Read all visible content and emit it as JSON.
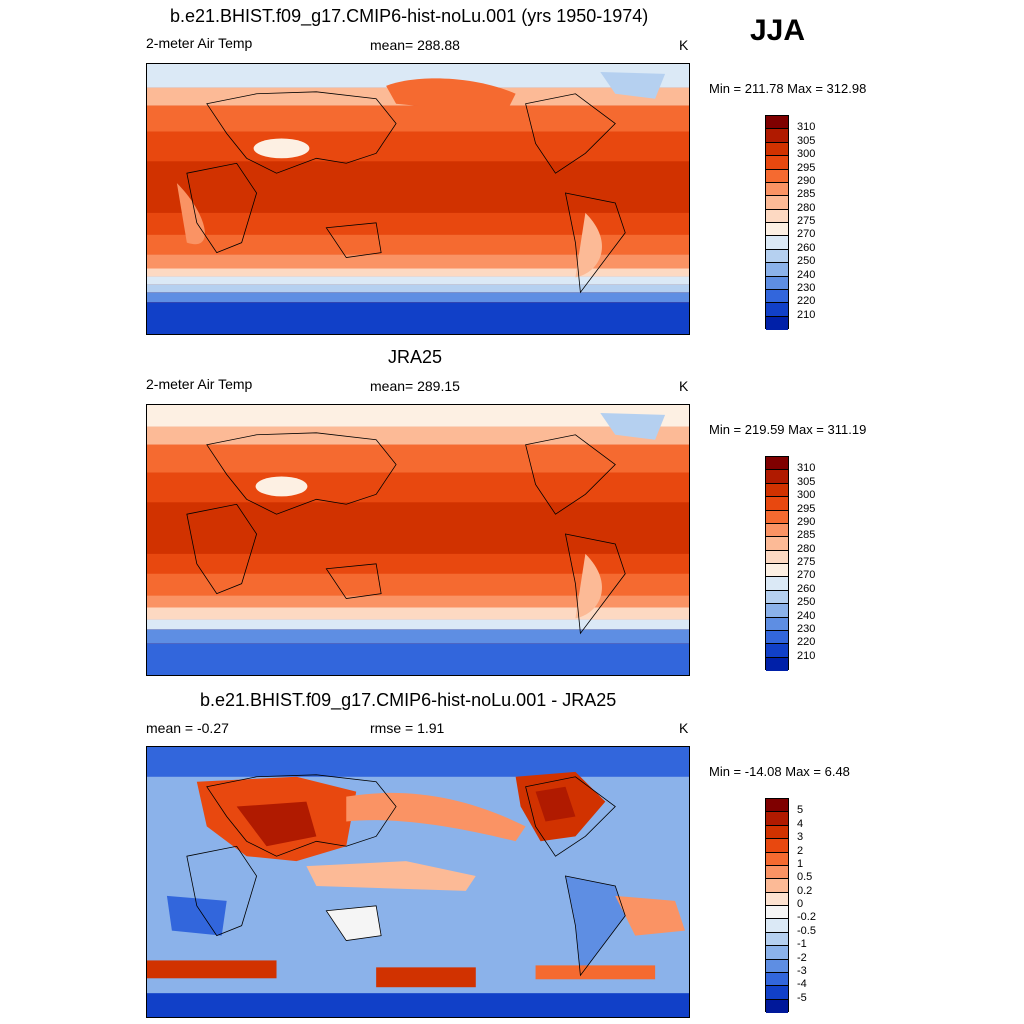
{
  "season": "JJA",
  "panels": [
    {
      "title": "b.e21.BHIST.f09_g17.CMIP6-hist-noLu.001 (yrs 1950-1974)",
      "left_label": "2-meter Air Temp",
      "center_label": "mean= 288.88",
      "units": "K",
      "minmax": "Min = 211.78 Max = 312.98",
      "colorbar": {
        "ticks": [
          "310",
          "305",
          "300",
          "295",
          "290",
          "285",
          "280",
          "275",
          "270",
          "260",
          "250",
          "240",
          "230",
          "220",
          "210"
        ],
        "colors": [
          "#7f0000",
          "#b01a00",
          "#d13200",
          "#e8480f",
          "#f56a30",
          "#fa9364",
          "#fcba96",
          "#fdd9c2",
          "#fdf0e3",
          "#dbe9f6",
          "#b5d0f0",
          "#8bb2ea",
          "#5e8ee3",
          "#3266dc",
          "#1140c8",
          "#0020a8"
        ]
      }
    },
    {
      "title": "JRA25",
      "left_label": "2-meter Air Temp",
      "center_label": "mean= 289.15",
      "units": "K",
      "minmax": "Min = 219.59 Max = 311.19",
      "colorbar": {
        "ticks": [
          "310",
          "305",
          "300",
          "295",
          "290",
          "285",
          "280",
          "275",
          "270",
          "260",
          "250",
          "240",
          "230",
          "220",
          "210"
        ],
        "colors": [
          "#7f0000",
          "#b01a00",
          "#d13200",
          "#e8480f",
          "#f56a30",
          "#fa9364",
          "#fcba96",
          "#fdd9c2",
          "#fdf0e3",
          "#dbe9f6",
          "#b5d0f0",
          "#8bb2ea",
          "#5e8ee3",
          "#3266dc",
          "#1140c8",
          "#0020a8"
        ]
      }
    },
    {
      "title": "b.e21.BHIST.f09_g17.CMIP6-hist-noLu.001 - JRA25",
      "left_label": "mean =  -0.27",
      "center_label": "rmse =   1.91",
      "units": "K",
      "minmax": "Min = -14.08 Max =   6.48",
      "colorbar": {
        "ticks": [
          "5",
          "4",
          "3",
          "2",
          "1",
          "0.5",
          "0.2",
          "0",
          "-0.2",
          "-0.5",
          "-1",
          "-2",
          "-3",
          "-4",
          "-5"
        ],
        "colors": [
          "#7f0000",
          "#b01a00",
          "#d13200",
          "#e8480f",
          "#f56a30",
          "#fa9364",
          "#fcba96",
          "#fde2d0",
          "#f5f5f5",
          "#dbe9f6",
          "#b5d0f0",
          "#8bb2ea",
          "#5e8ee3",
          "#3266dc",
          "#1140c8",
          "#00189a"
        ]
      }
    }
  ]
}
